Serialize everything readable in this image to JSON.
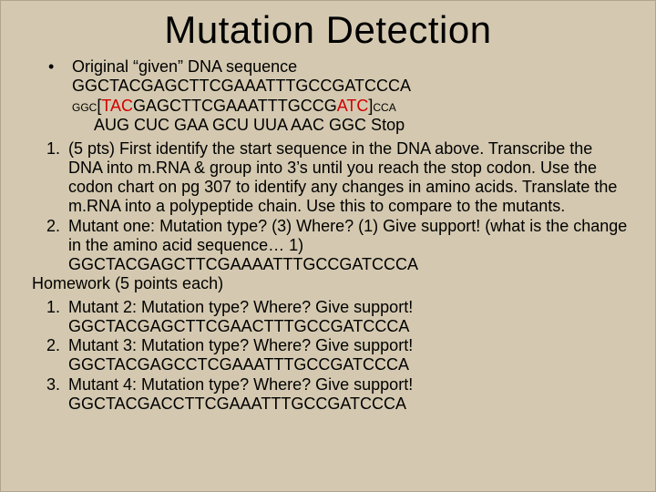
{
  "colors": {
    "background": "#d4c9b0",
    "text": "#000000",
    "highlight_red": "#d30000",
    "border": "#aea58c"
  },
  "fonts": {
    "title_family": "Arial",
    "title_size_pt": 32,
    "body_family": "Arial",
    "body_size_pt": 14,
    "small_size_pt": 9
  },
  "title": "Mutation Detection",
  "intro": {
    "label": "Original “given” DNA sequence",
    "seq_original": "GGCTACGAGCTTCGAAATTTGCCGATCCCA",
    "annotated": {
      "pre_small": "GGC",
      "open_bracket": "[",
      "mid1": "TAC",
      "mid2": "GAGCTTCGAAATTTGCCG",
      "mid3": "ATC",
      "close_bracket": "]",
      "post_small": "CCA"
    },
    "mrna_line": "AUG CUC GAA GCU UUA AAC GGC Stop"
  },
  "list1": [
    {
      "text": "(5 pts) First identify the start sequence in the DNA above. Transcribe the DNA into m.RNA & group into 3’s until you reach the stop codon. Use the codon chart on pg 307 to identify any changes in amino acids. Translate the m.RNA into a polypeptide chain. Use this to compare to the mutants."
    },
    {
      "text": "Mutant one: Mutation type? (3) Where? (1) Give support! (what is the change in the amino acid sequence… 1)",
      "seq": "GGCTACGAGCTTCGAAAATTTGCCGATCCCA"
    }
  ],
  "homework_label": "Homework (5 points each)",
  "list2": [
    {
      "text": "Mutant 2: Mutation type? Where? Give support!",
      "seq": "GGCTACGAGCTTCGAACTTTGCCGATCCCA"
    },
    {
      "text": "Mutant 3: Mutation type? Where? Give support!",
      "seq": "GGCTACGAGCCTCGAAATTTGCCGATCCCA"
    },
    {
      "text": "Mutant 4: Mutation type? Where? Give support!",
      "seq": "GGCTACGACCTTCGAAATTTGCCGATCCCA"
    }
  ]
}
